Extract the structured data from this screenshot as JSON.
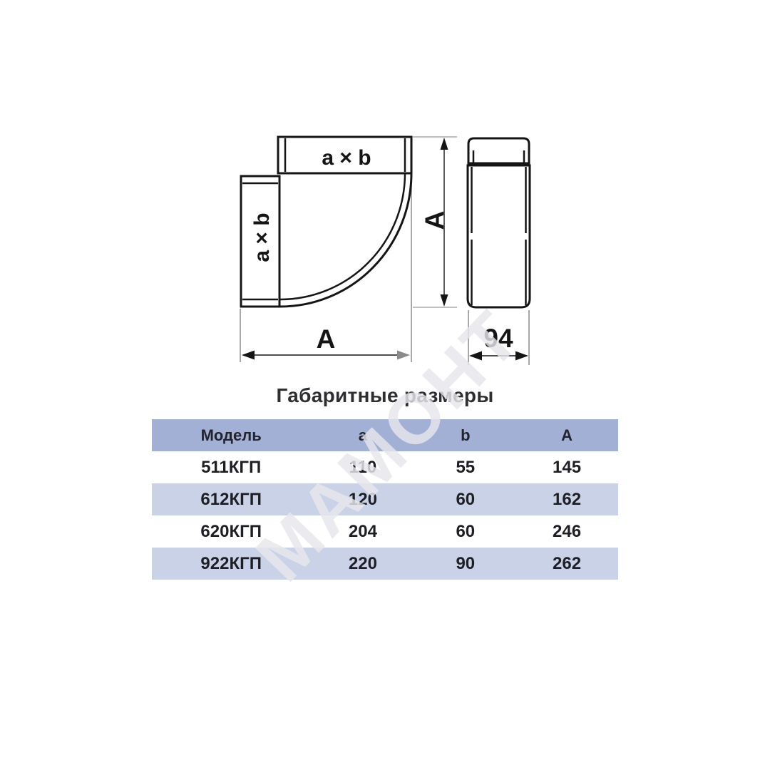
{
  "watermark_text": "МАМОНТ",
  "diagram": {
    "front_view": {
      "horizontal_duct_label": "a × b",
      "vertical_duct_label": "a × b",
      "height_dim_label": "A",
      "width_dim_label": "A"
    },
    "side_view": {
      "depth_dim_label": "94"
    }
  },
  "table": {
    "title": "Габаритные размеры",
    "columns": [
      "Модель",
      "a",
      "b",
      "A"
    ],
    "rows": [
      [
        "511КГП",
        "110",
        "55",
        "145"
      ],
      [
        "612КГП",
        "120",
        "60",
        "162"
      ],
      [
        "620КГП",
        "204",
        "60",
        "246"
      ],
      [
        "922КГП",
        "220",
        "90",
        "262"
      ]
    ]
  },
  "colors": {
    "header_bg": "#a3b0d6",
    "row_alt_bg": "#cad2e7",
    "line": "#151515",
    "thin_line": "#7a7a7a",
    "gray_arrow": "#8a8a8a",
    "text": "#1e1f24",
    "watermark": "#e7e7ec"
  }
}
